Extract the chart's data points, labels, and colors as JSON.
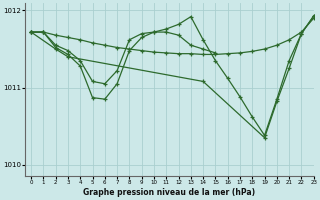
{
  "title": "Graphe pression niveau de la mer (hPa)",
  "background_color": "#cce8e8",
  "line_color": "#2d6a2d",
  "grid_color": "#aacfcf",
  "series": [
    {
      "x": [
        0,
        1,
        2,
        3,
        4,
        5,
        6,
        7,
        8,
        9,
        10,
        11,
        12,
        13,
        14,
        15,
        16,
        17,
        18,
        19,
        20,
        21,
        22,
        23
      ],
      "y": [
        1011.72,
        1011.72,
        1011.68,
        1011.65,
        1011.62,
        1011.58,
        1011.55,
        1011.52,
        1011.5,
        1011.48,
        1011.46,
        1011.45,
        1011.44,
        1011.44,
        1011.43,
        1011.43,
        1011.44,
        1011.45,
        1011.47,
        1011.5,
        1011.55,
        1011.62,
        1011.72,
        1011.9
      ]
    },
    {
      "x": [
        0,
        1,
        2,
        3,
        4,
        5,
        6,
        7,
        8,
        9,
        10,
        11,
        12,
        13,
        14,
        15
      ],
      "y": [
        1011.72,
        1011.72,
        1011.55,
        1011.48,
        1011.35,
        1011.08,
        1011.05,
        1011.22,
        1011.62,
        1011.7,
        1011.72,
        1011.72,
        1011.68,
        1011.55,
        1011.5,
        1011.45
      ]
    },
    {
      "x": [
        0,
        1,
        2,
        3,
        4,
        5,
        6,
        7,
        8,
        9,
        10,
        11,
        12,
        13,
        14,
        15,
        16,
        17,
        18,
        19,
        20,
        21,
        22,
        23
      ],
      "y": [
        1011.72,
        1011.72,
        1011.52,
        1011.43,
        1011.28,
        1010.87,
        1010.85,
        1011.05,
        1011.48,
        1011.65,
        1011.72,
        1011.76,
        1011.82,
        1011.92,
        1011.62,
        1011.35,
        1011.12,
        1010.88,
        1010.62,
        1010.38,
        1010.85,
        1011.35,
        1011.7,
        1011.93
      ]
    },
    {
      "x": [
        0,
        2,
        3,
        14,
        19,
        20,
        21,
        22,
        23
      ],
      "y": [
        1011.72,
        1011.5,
        1011.4,
        1011.08,
        1010.35,
        1010.82,
        1011.25,
        1011.7,
        1011.93
      ]
    }
  ],
  "xlim": [
    -0.5,
    23
  ],
  "ylim": [
    1009.85,
    1012.1
  ],
  "yticks": [
    1010,
    1011,
    1012
  ],
  "xticks": [
    0,
    1,
    2,
    3,
    4,
    5,
    6,
    7,
    8,
    9,
    10,
    11,
    12,
    13,
    14,
    15,
    16,
    17,
    18,
    19,
    20,
    21,
    22,
    23
  ],
  "marker": "+",
  "markersize": 3,
  "linewidth": 0.9
}
